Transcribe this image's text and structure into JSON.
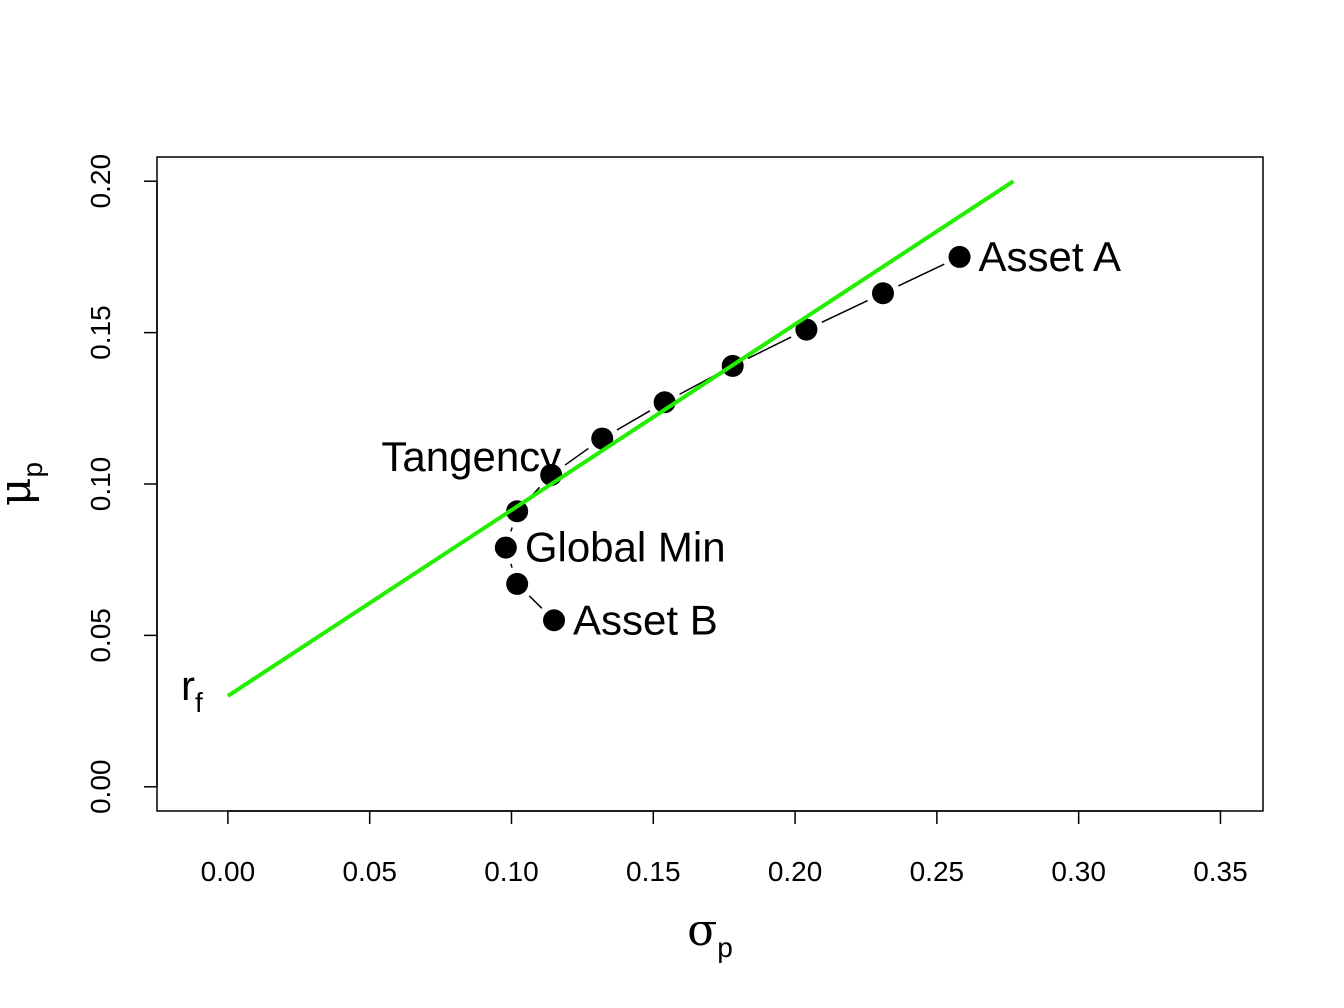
{
  "chart_data": {
    "type": "scatter",
    "xlabel": {
      "main": "σ",
      "sub": "p"
    },
    "ylabel": {
      "main": "μ",
      "sub": "p"
    },
    "xlim": [
      -0.025,
      0.365
    ],
    "ylim": [
      -0.008,
      0.208
    ],
    "x_ticks": [
      "0.00",
      "0.05",
      "0.10",
      "0.15",
      "0.20",
      "0.25",
      "0.30",
      "0.35"
    ],
    "y_ticks": [
      "0.00",
      "0.05",
      "0.10",
      "0.15",
      "0.20"
    ],
    "grid": false,
    "frontier": {
      "points": [
        {
          "x": 0.258,
          "y": 0.175
        },
        {
          "x": 0.231,
          "y": 0.163
        },
        {
          "x": 0.204,
          "y": 0.151
        },
        {
          "x": 0.178,
          "y": 0.139
        },
        {
          "x": 0.154,
          "y": 0.127
        },
        {
          "x": 0.132,
          "y": 0.115
        },
        {
          "x": 0.114,
          "y": 0.103
        },
        {
          "x": 0.102,
          "y": 0.091
        },
        {
          "x": 0.098,
          "y": 0.079
        },
        {
          "x": 0.102,
          "y": 0.067
        },
        {
          "x": 0.115,
          "y": 0.055
        }
      ],
      "color": "#000000"
    },
    "tangency_line": {
      "x": [
        0.0,
        0.277
      ],
      "y": [
        0.03,
        0.2
      ],
      "color": "#22ee00"
    },
    "labels": [
      {
        "text": "Asset A",
        "x": 0.258,
        "y": 0.175,
        "pos": "right"
      },
      {
        "text": "Asset B",
        "x": 0.115,
        "y": 0.055,
        "pos": "right"
      },
      {
        "text": "Global Min",
        "x": 0.098,
        "y": 0.079,
        "pos": "right"
      },
      {
        "text": "Tangency",
        "x": 0.114,
        "y": 0.103,
        "pos": "left"
      }
    ],
    "rf_label": {
      "main": "r",
      "sub": "f",
      "x": 0.0,
      "y": 0.03
    }
  }
}
